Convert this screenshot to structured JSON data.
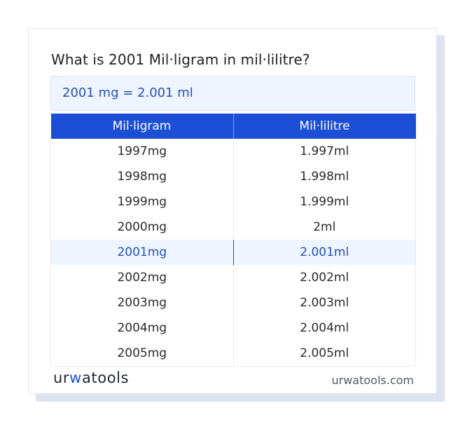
{
  "title": "What is 2001 Mil·ligram in mil·lilitre?",
  "result": "2001 mg = 2.001 ml",
  "table": {
    "headers": [
      "Mil·ligram",
      "Mil·lilitre"
    ],
    "rows": [
      {
        "mg": "1997mg",
        "ml": "1.997ml"
      },
      {
        "mg": "1998mg",
        "ml": "1.998ml"
      },
      {
        "mg": "1999mg",
        "ml": "1.999ml"
      },
      {
        "mg": "2000mg",
        "ml": "2ml"
      },
      {
        "mg": "2001mg",
        "ml": "2.001ml"
      },
      {
        "mg": "2002mg",
        "ml": "2.002ml"
      },
      {
        "mg": "2003mg",
        "ml": "2.003ml"
      },
      {
        "mg": "2004mg",
        "ml": "2.004ml"
      },
      {
        "mg": "2005mg",
        "ml": "2.005ml"
      }
    ],
    "highlight_row": 4
  },
  "footer": {
    "logo_parts": [
      "ur",
      "w",
      "atools"
    ],
    "site": "urwatools.com"
  },
  "colors": {
    "accent": "#1d4fd6",
    "result_bg": "#eef5fe",
    "result_text": "#2452b8"
  }
}
